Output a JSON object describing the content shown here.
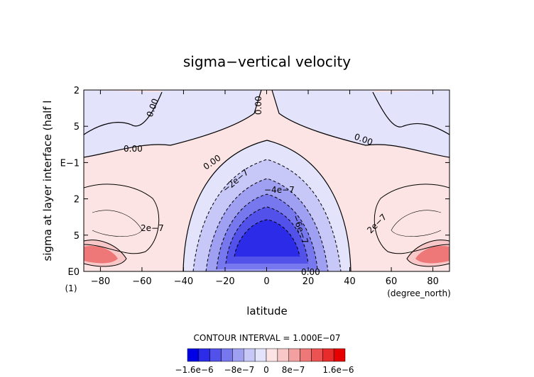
{
  "chart_data": {
    "type": "heatmap",
    "title": "sigma−vertical velocity",
    "xlabel": "latitude",
    "ylabel": "sigma at layer interface (half l",
    "x_unit": "(degree_north)",
    "y_unit": "(1)",
    "xlim": [
      -88,
      88
    ],
    "x_ticks": [
      -80,
      -60,
      -40,
      -20,
      0,
      20,
      40,
      60,
      80
    ],
    "y_ticks": [
      "2",
      "5",
      "E−1",
      "2",
      "5",
      "E0"
    ],
    "contour_labels": [
      "0.00",
      "0.00",
      "0.00",
      "0.00",
      "0.00",
      "0.00",
      "−2e−7",
      "−4e−7",
      "−6e−7",
      "2e−7",
      "2e−7",
      "0.00"
    ],
    "contour_interval_text": "CONTOUR INTERVAL = 1.000E−07",
    "colorbar": {
      "colors": [
        "#0000e6",
        "#2b2be8",
        "#5252eb",
        "#7878ee",
        "#a0a0f2",
        "#c8c8f8",
        "#e3e3fc",
        "#fde4e4",
        "#f8c8c8",
        "#f2a0a0",
        "#ee7878",
        "#eb5252",
        "#e82b2b",
        "#e60000"
      ],
      "tick_labels": [
        "−1.6e−6",
        "−8e−7",
        "0",
        "8e−7",
        "1.6e−6"
      ]
    }
  }
}
